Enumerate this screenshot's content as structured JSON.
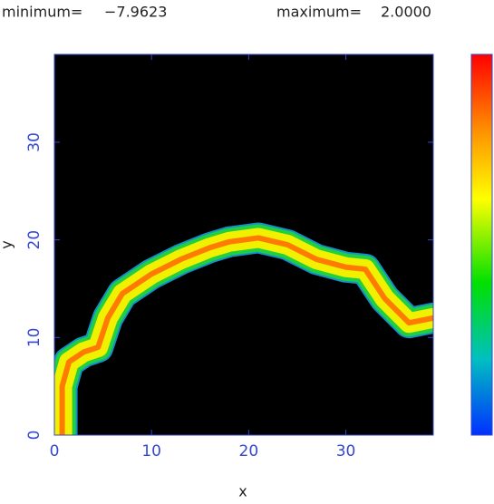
{
  "chart_data": {
    "type": "line",
    "header": {
      "minimum_label": "minimum=",
      "minimum": {
        "value": -7.9623,
        "label": "−7.9623"
      },
      "maximum_label": "maximum=",
      "maximum": {
        "value": 2,
        "label": "2.0000"
      }
    },
    "xlabel": "x",
    "ylabel": "y",
    "xlim": [
      0,
      39
    ],
    "ylim": [
      0,
      39
    ],
    "xticks": [
      0,
      10,
      20,
      30
    ],
    "yticks": [
      0,
      10,
      20,
      30
    ],
    "x": [
      0.8,
      0.8,
      1.5,
      3,
      4.5,
      5.5,
      7,
      10,
      13,
      16,
      18,
      21,
      24,
      27,
      30,
      32,
      34,
      36.5,
      39
    ],
    "values": [
      0,
      5,
      7.5,
      8.5,
      9,
      12,
      14.5,
      16.5,
      18,
      19.2,
      19.8,
      20.2,
      19.5,
      18,
      17.2,
      17,
      14,
      11.5,
      12
    ],
    "colors": [
      "#1590c8",
      "#20d040",
      "#f0f000",
      "#ff7a00"
    ]
  }
}
